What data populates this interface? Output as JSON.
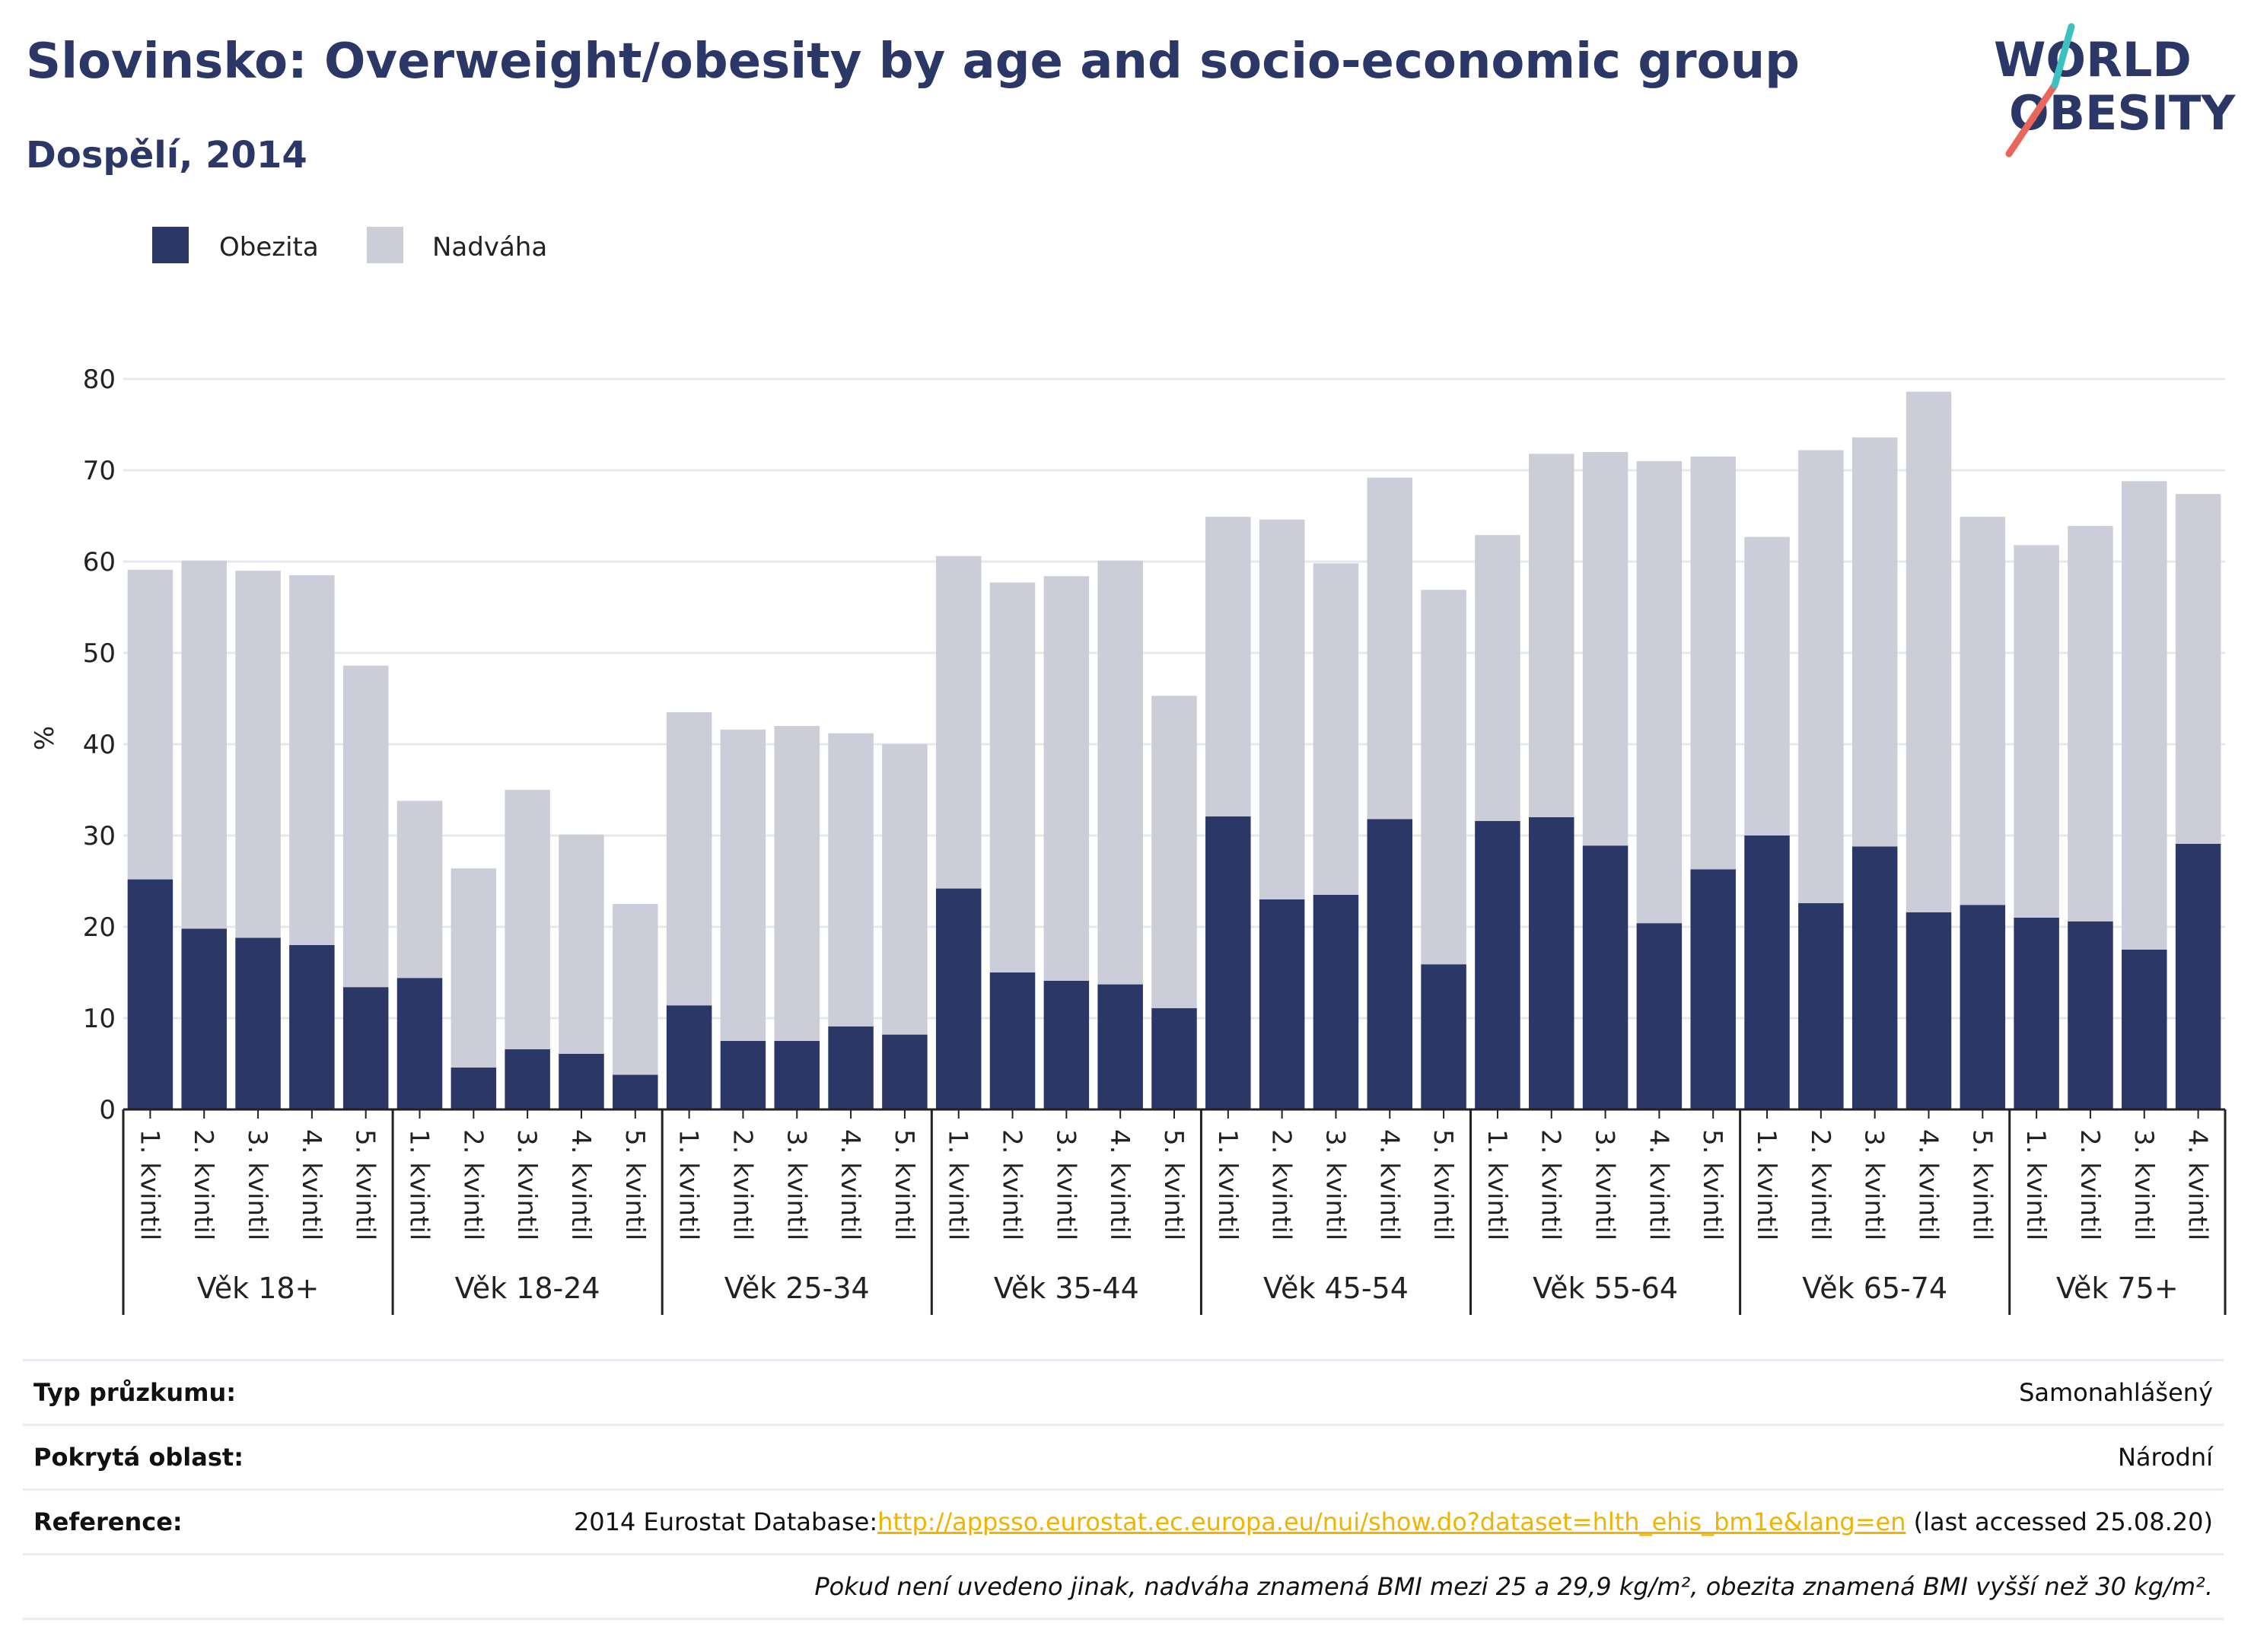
{
  "header": {
    "title": "Slovinsko: Overweight/obesity by age and socio-economic group",
    "subtitle": "Dospělí, 2014"
  },
  "logo": {
    "line1": "WORLD",
    "line2": "OBESITY"
  },
  "colors": {
    "obesity": "#2b3766",
    "overweight": "#cbcdd9",
    "grid": "#e6e8ee",
    "accent_red": "#e8665a",
    "accent_teal": "#3cc0c0"
  },
  "chart_data": {
    "type": "bar",
    "stacked": true,
    "ylabel": "%",
    "ylim": [
      0,
      80
    ],
    "yticks": [
      0,
      10,
      20,
      30,
      40,
      50,
      60,
      70,
      80
    ],
    "grid": true,
    "legend_position": "top-left",
    "groups": [
      {
        "label": "Věk 18+",
        "categories": [
          "1. kvintil",
          "2. kvintil",
          "3. kvintil",
          "4. kvintil",
          "5. kvintil"
        ]
      },
      {
        "label": "Věk 18-24",
        "categories": [
          "1. kvintil",
          "2. kvintil",
          "3. kvintil",
          "4. kvintil",
          "5. kvintil"
        ]
      },
      {
        "label": "Věk 25-34",
        "categories": [
          "1. kvintil",
          "2. kvintil",
          "3. kvintil",
          "4. kvintil",
          "5. kvintil"
        ]
      },
      {
        "label": "Věk 35-44",
        "categories": [
          "1. kvintil",
          "2. kvintil",
          "3. kvintil",
          "4. kvintil",
          "5. kvintil"
        ]
      },
      {
        "label": "Věk 45-54",
        "categories": [
          "1. kvintil",
          "2. kvintil",
          "3. kvintil",
          "4. kvintil",
          "5. kvintil"
        ]
      },
      {
        "label": "Věk 55-64",
        "categories": [
          "1. kvintil",
          "2. kvintil",
          "3. kvintil",
          "4. kvintil",
          "5. kvintil"
        ]
      },
      {
        "label": "Věk 65-74",
        "categories": [
          "1. kvintil",
          "2. kvintil",
          "3. kvintil",
          "4. kvintil",
          "5. kvintil"
        ]
      },
      {
        "label": "Věk 75+",
        "categories": [
          "1. kvintil",
          "2. kvintil",
          "3. kvintil",
          "4. kvintil"
        ]
      }
    ],
    "series": [
      {
        "name": "Obezita",
        "color": "#2b3766",
        "values": [
          25.2,
          19.8,
          18.8,
          18.0,
          13.4,
          14.4,
          4.6,
          6.6,
          6.1,
          3.8,
          11.4,
          7.5,
          7.5,
          9.1,
          8.2,
          24.2,
          15.0,
          14.1,
          13.7,
          11.1,
          32.1,
          23.0,
          23.5,
          31.8,
          15.9,
          31.6,
          32.0,
          28.9,
          20.4,
          26.3,
          30.0,
          22.6,
          28.8,
          21.6,
          22.4,
          21.0,
          20.6,
          17.5,
          29.1
        ]
      },
      {
        "name": "Nadváha",
        "color": "#cbcdd9",
        "values": [
          33.9,
          40.3,
          40.2,
          40.5,
          35.2,
          19.4,
          21.8,
          28.4,
          24.0,
          18.7,
          32.1,
          34.1,
          34.5,
          32.1,
          31.8,
          36.4,
          42.7,
          44.3,
          46.4,
          34.2,
          32.8,
          41.6,
          36.3,
          37.4,
          41.0,
          31.3,
          39.8,
          43.1,
          50.6,
          45.2,
          32.7,
          49.6,
          44.8,
          57.0,
          42.5,
          40.8,
          43.3,
          51.3,
          38.3
        ]
      }
    ]
  },
  "info": {
    "survey_type": {
      "label": "Typ průzkumu:",
      "value": "Samonahlášený"
    },
    "coverage": {
      "label": "Pokrytá oblast:",
      "value": "Národní"
    },
    "reference": {
      "label": "Reference:",
      "prefix": "2014 Eurostat Database:",
      "link": "http://appsso.eurostat.ec.europa.eu/nui/show.do?dataset=hlth_ehis_bm1e&lang=en",
      "suffix": " (last accessed 25.08.20)"
    },
    "note": "Pokud není uvedeno jinak, nadváha znamená BMI mezi 25 a 29,9 kg/m², obezita znamená BMI vyšší než 30 kg/m²."
  }
}
